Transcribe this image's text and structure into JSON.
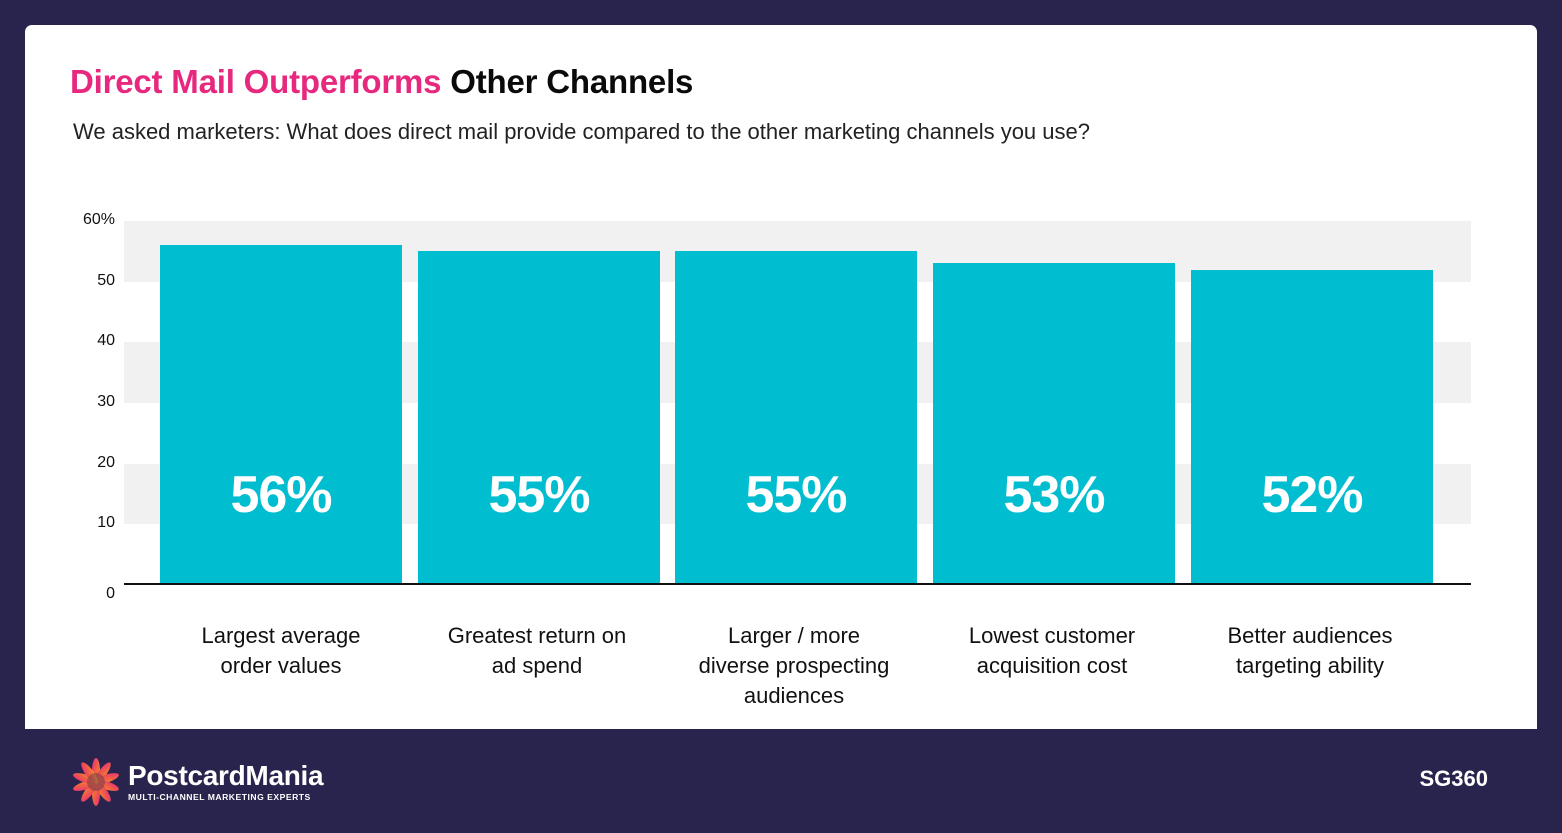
{
  "header": {
    "title_accent": "Direct Mail Outperforms",
    "title_rest": "Other Channels",
    "subtitle": "We asked marketers: What does direct mail provide compared to the other marketing channels you use?"
  },
  "colors": {
    "background": "#29244d",
    "accent": "#e6297e",
    "bar": "#00bdd0",
    "band": "#f1f1f1"
  },
  "chart_data": {
    "type": "bar",
    "title": "Direct Mail Outperforms Other Channels",
    "subtitle": "We asked marketers: What does direct mail provide compared to the other marketing channels you use?",
    "categories": [
      "Largest average order values",
      "Greatest return on ad spend",
      "Larger / more diverse prospecting audiences",
      "Lowest customer acquisition cost",
      "Better audiences targeting ability"
    ],
    "values": [
      56,
      55,
      55,
      53,
      52
    ],
    "value_labels": [
      "56%",
      "55%",
      "55%",
      "53%",
      "52%"
    ],
    "xlabel": "",
    "ylabel": "",
    "ylim": [
      0,
      60
    ],
    "yticks": [
      "0",
      "10",
      "20",
      "30",
      "40",
      "50",
      "60%"
    ],
    "grid": "alternating horizontal bands",
    "legend": "none"
  },
  "categories_display": [
    [
      "Largest average",
      "order values"
    ],
    [
      "Greatest return on",
      "ad spend"
    ],
    [
      "Larger / more",
      "diverse prospecting",
      "audiences"
    ],
    [
      "Lowest customer",
      "acquisition cost"
    ],
    [
      "Better audiences",
      "targeting ability"
    ]
  ],
  "footer": {
    "logo_name": "PostcardMania",
    "logo_tagline": "MULTI-CHANNEL MARKETING EXPERTS",
    "logo_icon": "sunburst-logo-icon",
    "partner": "SG360"
  }
}
